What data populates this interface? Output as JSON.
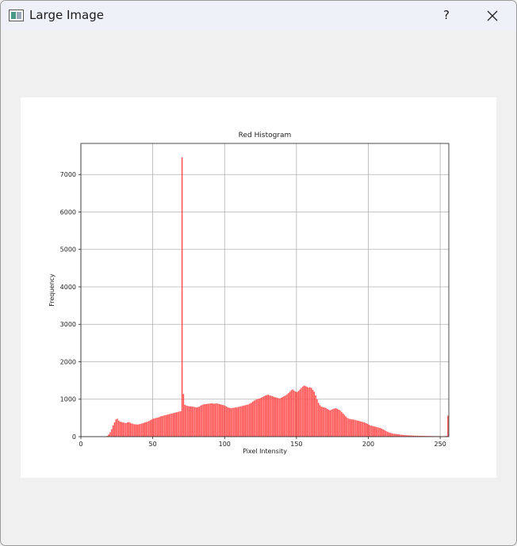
{
  "window": {
    "title": "Large Image",
    "help": "?"
  },
  "chart_data": {
    "type": "histogram",
    "title": "Red Histogram",
    "x_label": "Pixel Intensity",
    "y_label": "Frequency",
    "color": "#ff4d4d",
    "grid": true,
    "xlim": [
      0,
      256
    ],
    "xticks": [
      0,
      50,
      100,
      150,
      200,
      250
    ],
    "ylim": [
      0,
      7830
    ],
    "yticks": [
      0,
      1000,
      2000,
      3000,
      4000,
      5000,
      6000,
      7000
    ],
    "bins": [
      0,
      1,
      2,
      3,
      4,
      5,
      6,
      7,
      8,
      9,
      10,
      11,
      12,
      13,
      14,
      15,
      16,
      17,
      18,
      19,
      20,
      21,
      22,
      23,
      24,
      25,
      26,
      27,
      28,
      29,
      30,
      31,
      32,
      33,
      34,
      35,
      36,
      37,
      38,
      39,
      40,
      41,
      42,
      43,
      44,
      45,
      46,
      47,
      48,
      49,
      50,
      51,
      52,
      53,
      54,
      55,
      56,
      57,
      58,
      59,
      60,
      61,
      62,
      63,
      64,
      65,
      66,
      67,
      68,
      69,
      70,
      71,
      72,
      73,
      74,
      75,
      76,
      77,
      78,
      79,
      80,
      81,
      82,
      83,
      84,
      85,
      86,
      87,
      88,
      89,
      90,
      91,
      92,
      93,
      94,
      95,
      96,
      97,
      98,
      99,
      100,
      101,
      102,
      103,
      104,
      105,
      106,
      107,
      108,
      109,
      110,
      111,
      112,
      113,
      114,
      115,
      116,
      117,
      118,
      119,
      120,
      121,
      122,
      123,
      124,
      125,
      126,
      127,
      128,
      129,
      130,
      131,
      132,
      133,
      134,
      135,
      136,
      137,
      138,
      139,
      140,
      141,
      142,
      143,
      144,
      145,
      146,
      147,
      148,
      149,
      150,
      151,
      152,
      153,
      154,
      155,
      156,
      157,
      158,
      159,
      160,
      161,
      162,
      163,
      164,
      165,
      166,
      167,
      168,
      169,
      170,
      171,
      172,
      173,
      174,
      175,
      176,
      177,
      178,
      179,
      180,
      181,
      182,
      183,
      184,
      185,
      186,
      187,
      188,
      189,
      190,
      191,
      192,
      193,
      194,
      195,
      196,
      197,
      198,
      199,
      200,
      201,
      202,
      203,
      204,
      205,
      206,
      207,
      208,
      209,
      210,
      211,
      212,
      213,
      214,
      215,
      216,
      217,
      218,
      219,
      220,
      221,
      222,
      223,
      224,
      225,
      226,
      227,
      228,
      229,
      230,
      231,
      232,
      233,
      234,
      235,
      236,
      237,
      238,
      239,
      240,
      241,
      242,
      243,
      244,
      245,
      246,
      247,
      248,
      249,
      250,
      251,
      252,
      253,
      254,
      255,
      256
    ],
    "values": [
      0,
      0,
      0,
      0,
      0,
      0,
      0,
      0,
      0,
      0,
      0,
      0,
      0,
      0,
      0,
      0,
      0,
      0,
      20,
      60,
      120,
      200,
      300,
      380,
      460,
      480,
      430,
      400,
      390,
      380,
      370,
      360,
      380,
      390,
      370,
      350,
      340,
      330,
      330,
      320,
      330,
      340,
      350,
      360,
      380,
      390,
      400,
      420,
      440,
      460,
      480,
      490,
      500,
      510,
      520,
      540,
      550,
      560,
      570,
      580,
      590,
      600,
      610,
      620,
      630,
      640,
      650,
      660,
      670,
      680,
      7460,
      1140,
      850,
      830,
      820,
      810,
      810,
      800,
      800,
      790,
      780,
      790,
      800,
      830,
      850,
      860,
      870,
      870,
      880,
      880,
      890,
      890,
      880,
      880,
      890,
      880,
      870,
      860,
      850,
      840,
      820,
      800,
      780,
      770,
      760,
      770,
      770,
      780,
      780,
      790,
      800,
      810,
      820,
      830,
      840,
      850,
      860,
      880,
      900,
      930,
      960,
      980,
      1000,
      1010,
      1020,
      1040,
      1060,
      1080,
      1100,
      1110,
      1120,
      1100,
      1090,
      1080,
      1060,
      1050,
      1040,
      1030,
      1020,
      1040,
      1060,
      1080,
      1100,
      1130,
      1160,
      1200,
      1240,
      1260,
      1230,
      1200,
      1190,
      1220,
      1260,
      1300,
      1340,
      1360,
      1350,
      1330,
      1310,
      1320,
      1300,
      1250,
      1200,
      1100,
      1000,
      900,
      840,
      800,
      790,
      780,
      770,
      740,
      720,
      700,
      720,
      740,
      750,
      760,
      740,
      720,
      700,
      660,
      620,
      580,
      540,
      500,
      480,
      470,
      460,
      460,
      450,
      440,
      430,
      420,
      410,
      400,
      390,
      380,
      360,
      340,
      320,
      300,
      290,
      280,
      270,
      260,
      250,
      240,
      230,
      210,
      190,
      170,
      150,
      130,
      110,
      100,
      90,
      80,
      75,
      70,
      65,
      60,
      55,
      50,
      45,
      40,
      38,
      36,
      34,
      32,
      30,
      28,
      26,
      25,
      24,
      23,
      22,
      21,
      20,
      20,
      19,
      18,
      17,
      16,
      15,
      14,
      13,
      12,
      12,
      11,
      10,
      10,
      10,
      12,
      20,
      560
    ]
  }
}
